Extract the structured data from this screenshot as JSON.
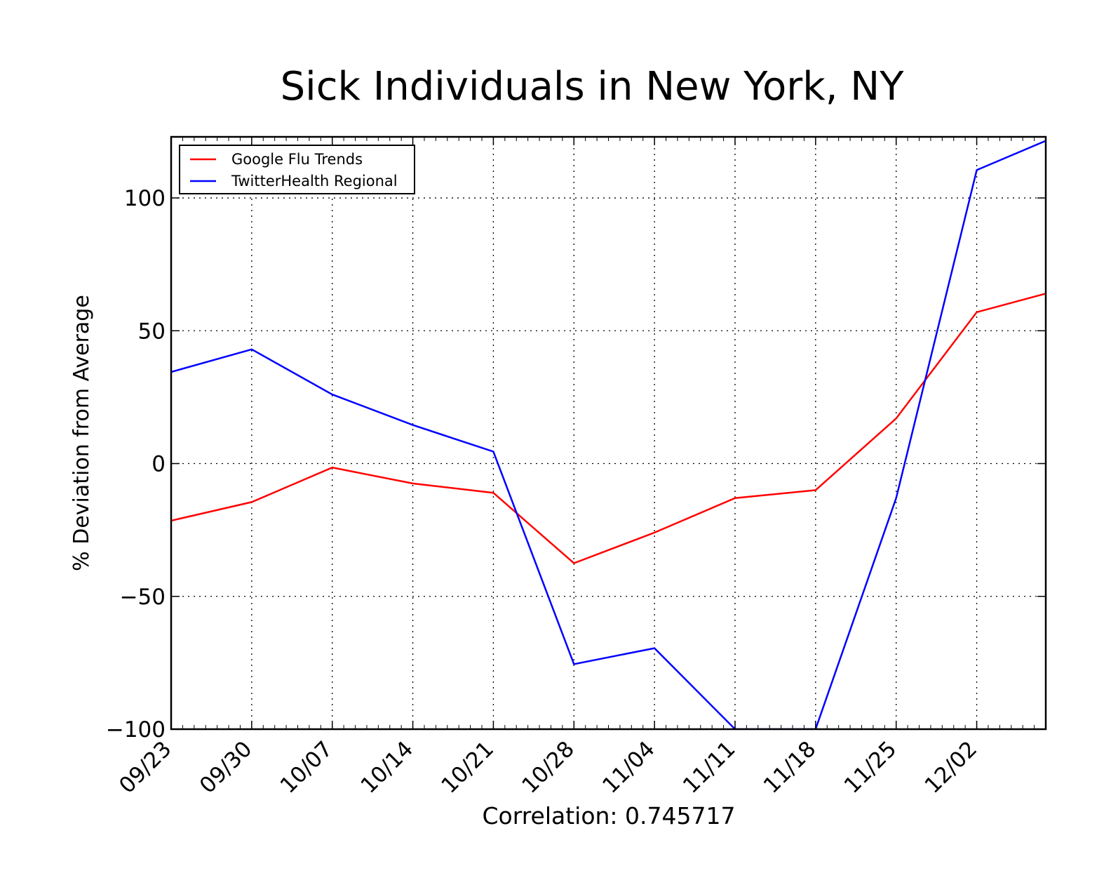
{
  "chart_data": {
    "type": "line",
    "title": "Sick Individuals in New York, NY",
    "xlabel": "Correlation: 0.745717",
    "ylabel": "% Deviation from Average",
    "x_tick_labels": [
      "09/23",
      "09/30",
      "10/07",
      "10/14",
      "10/21",
      "10/28",
      "11/04",
      "11/11",
      "11/18",
      "11/25",
      "12/02"
    ],
    "y_ticks": [
      -100,
      -50,
      0,
      50,
      100
    ],
    "y_tick_labels": [
      "−100",
      "−50",
      "0",
      "50",
      "100"
    ],
    "xlim": [
      0,
      76
    ],
    "ylim": [
      -100,
      123
    ],
    "grid": true,
    "legend_position": "top-left",
    "series": [
      {
        "name": "Google Flu Trends",
        "color": "#ff0000",
        "x": [
          0,
          7,
          14,
          21,
          28,
          35,
          42,
          49,
          56,
          63,
          70,
          76
        ],
        "y": [
          -21.5,
          -14.5,
          -1.5,
          -7.5,
          -11,
          -37.5,
          -26,
          -13,
          -10,
          17,
          57,
          64
        ]
      },
      {
        "name": "TwitterHealth Regional",
        "color": "#0000ff",
        "x": [
          0,
          7,
          14,
          21,
          28,
          35,
          42,
          49,
          56,
          63,
          70,
          76
        ],
        "y": [
          34.5,
          43,
          26,
          14.5,
          4.5,
          -75.5,
          -69.5,
          -100,
          -100,
          -13,
          110.5,
          121.5
        ]
      }
    ]
  }
}
